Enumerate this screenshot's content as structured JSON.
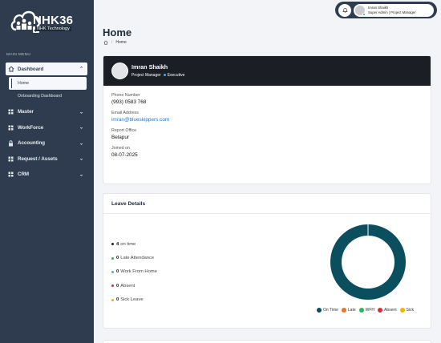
{
  "brand": {
    "name": "NHK36",
    "subtitle": "NHK Technology"
  },
  "sidebar": {
    "menu_title": "MAIN MENU",
    "items": [
      {
        "label": "Dashboard",
        "icon": "home-icon",
        "expanded": true
      },
      {
        "label": "Master",
        "icon": "grid-icon"
      },
      {
        "label": "WorkForce",
        "icon": "grid-icon"
      },
      {
        "label": "Accounting",
        "icon": "lock-icon"
      },
      {
        "label": "Request / Assets",
        "icon": "grid-icon"
      },
      {
        "label": "CRM",
        "icon": "grid-icon"
      }
    ],
    "dashboard_sub": [
      {
        "label": "Home",
        "active": true
      },
      {
        "label": "Onboarding Dashboard"
      }
    ]
  },
  "topbar": {
    "user_name": "Imran Shaikh",
    "user_role": "Super Admin | Project Manager"
  },
  "page": {
    "title": "Home",
    "breadcrumb": "Home"
  },
  "profile": {
    "name": "Imran Shaikh",
    "designation": "Project Manager",
    "level": "Executive",
    "fields": [
      {
        "label": "Phone Number",
        "value": "(993) 0583 768"
      },
      {
        "label": "Email Address",
        "value": "imran@blueskippers.com"
      },
      {
        "label": "Report Office",
        "value": "Belapur"
      },
      {
        "label": "Joined on",
        "value": "08-07-2025"
      }
    ]
  },
  "leave": {
    "title": "Leave Details",
    "items": [
      {
        "count": "4",
        "label": "on time",
        "color": "#1b1f25"
      },
      {
        "count": "0",
        "label": "Late Attendance",
        "color": "#2fb65a"
      },
      {
        "count": "0",
        "label": "Work From Home",
        "color": "#4da3ff"
      },
      {
        "count": "0",
        "label": "Absent",
        "color": "#c0392b"
      },
      {
        "count": "0",
        "label": "Sick Leave",
        "color": "#f0b400"
      }
    ],
    "chart_data": {
      "type": "pie",
      "categories": [
        "On Time",
        "Late",
        "WFH",
        "Absent",
        "Sick"
      ],
      "values": [
        4,
        0,
        0,
        0,
        0
      ],
      "colors": [
        "#0b4f5e",
        "#e0782a",
        "#2fb65a",
        "#d63031",
        "#f0b400"
      ],
      "legend_position": "bottom"
    }
  },
  "colors": {
    "sidebar_bg": "#2f3c4f",
    "profile_header_bg": "#1b1f25",
    "donut_primary": "#0b4f5e"
  }
}
